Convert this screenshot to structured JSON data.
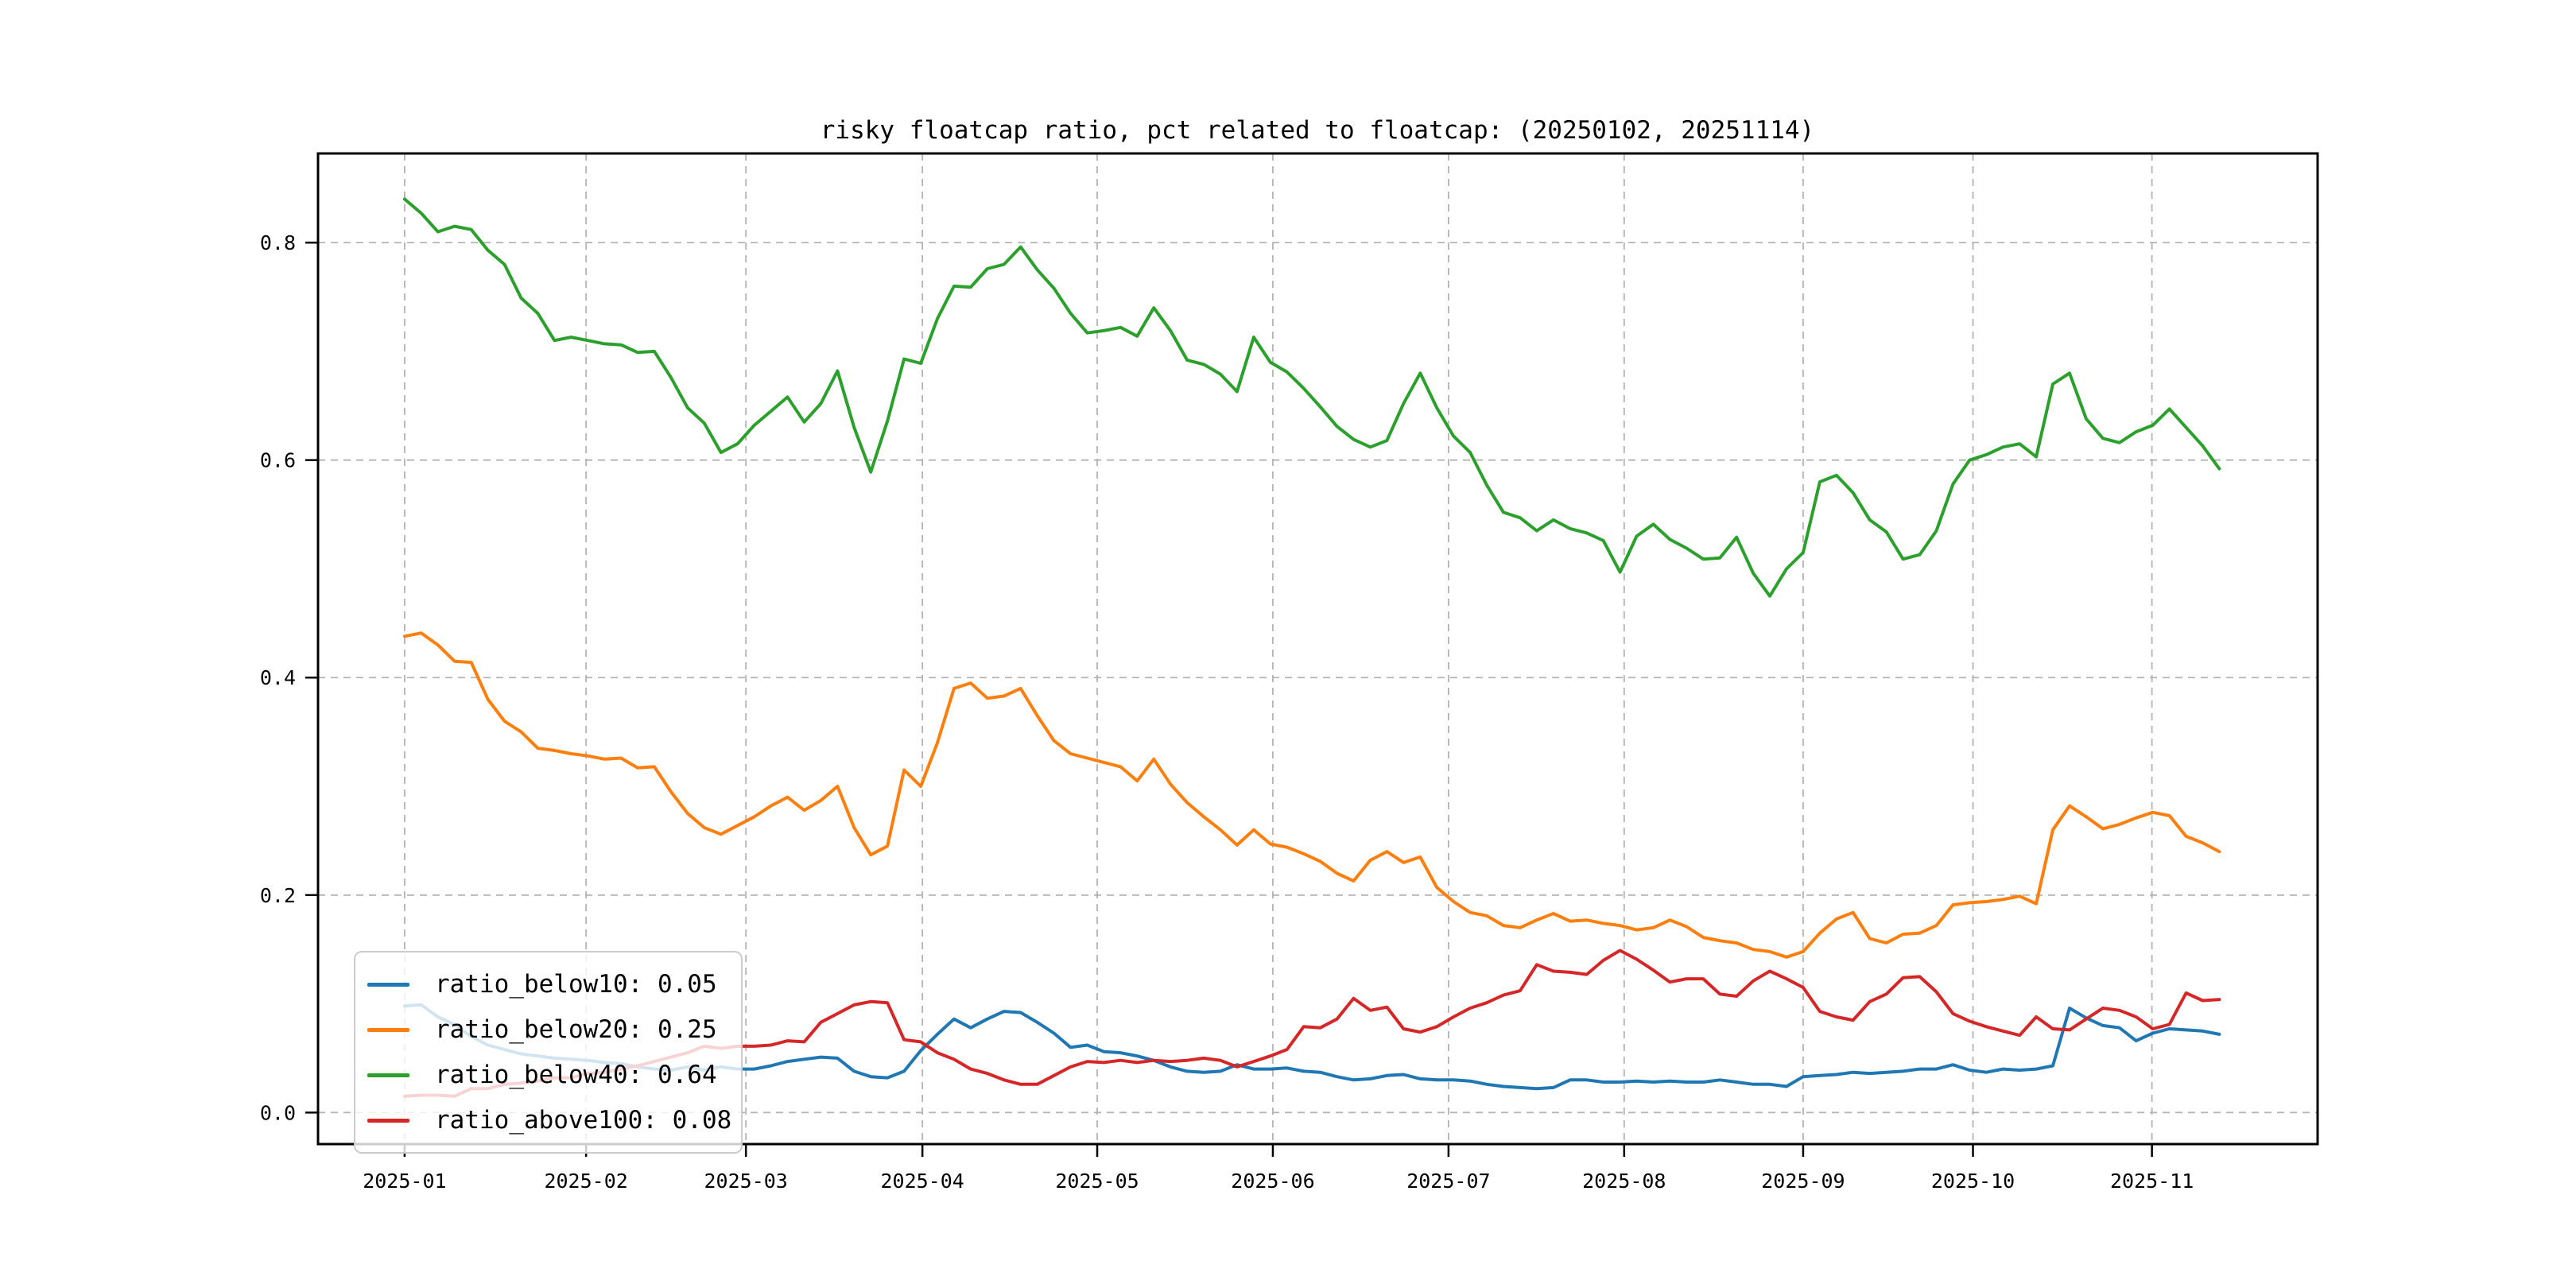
{
  "figure": {
    "title": "risky floatcap ratio, pct related to floatcap: (20250102, 20251114)",
    "background": "#ffffff"
  },
  "chart_data": {
    "type": "line",
    "title": "risky floatcap ratio, pct related to floatcap: (20250102, 20251114)",
    "xlabel": "",
    "ylabel": "",
    "grid": true,
    "grid_color": "#b3b3b3",
    "legend_position": "lower left",
    "x_unit": "trading-day index from 2025-01-02",
    "x_step_days": 2,
    "xlim_days": [
      -10.4,
      229.8
    ],
    "ylim": [
      -0.029,
      0.882
    ],
    "y_ticks": [
      0.0,
      0.2,
      0.4,
      0.6,
      0.8
    ],
    "y_tick_labels": [
      "0.0",
      "0.2",
      "0.4",
      "0.6",
      "0.8"
    ],
    "x_tick_days": [
      0,
      21.8,
      41.0,
      62.2,
      83.2,
      104.3,
      125.4,
      146.5,
      168.0,
      188.4,
      209.9
    ],
    "x_tick_labels": [
      "2025-01",
      "2025-02",
      "2025-03",
      "2025-04",
      "2025-05",
      "2025-06",
      "2025-07",
      "2025-08",
      "2025-09",
      "2025-10",
      "2025-11"
    ],
    "series": [
      {
        "name": "ratio_below10",
        "legend_label": "ratio_below10: 0.05",
        "color": "#1f77b4",
        "values": [
          0.098,
          0.099,
          0.088,
          0.081,
          0.07,
          0.062,
          0.058,
          0.054,
          0.052,
          0.05,
          0.049,
          0.048,
          0.046,
          0.045,
          0.042,
          0.04,
          0.039,
          0.042,
          0.039,
          0.042,
          0.04,
          0.04,
          0.043,
          0.047,
          0.049,
          0.051,
          0.05,
          0.038,
          0.033,
          0.032,
          0.038,
          0.057,
          0.072,
          0.086,
          0.078,
          0.086,
          0.093,
          0.092,
          0.083,
          0.073,
          0.06,
          0.062,
          0.056,
          0.055,
          0.052,
          0.048,
          0.042,
          0.038,
          0.037,
          0.038,
          0.044,
          0.04,
          0.04,
          0.041,
          0.038,
          0.037,
          0.033,
          0.03,
          0.031,
          0.034,
          0.035,
          0.031,
          0.03,
          0.03,
          0.029,
          0.026,
          0.024,
          0.023,
          0.022,
          0.023,
          0.03,
          0.03,
          0.028,
          0.028,
          0.029,
          0.028,
          0.029,
          0.028,
          0.028,
          0.03,
          0.028,
          0.026,
          0.026,
          0.024,
          0.033,
          0.034,
          0.035,
          0.037,
          0.036,
          0.037,
          0.038,
          0.04,
          0.04,
          0.044,
          0.039,
          0.037,
          0.04,
          0.039,
          0.04,
          0.043,
          0.096,
          0.087,
          0.08,
          0.078,
          0.066,
          0.073,
          0.077,
          0.076,
          0.075,
          0.072
        ]
      },
      {
        "name": "ratio_below20",
        "legend_label": "ratio_below20: 0.25",
        "color": "#ff7f0e",
        "values": [
          0.438,
          0.441,
          0.43,
          0.415,
          0.414,
          0.38,
          0.36,
          0.35,
          0.335,
          0.333,
          0.33,
          0.328,
          0.325,
          0.326,
          0.317,
          0.318,
          0.295,
          0.275,
          0.262,
          0.256,
          0.264,
          0.272,
          0.282,
          0.29,
          0.278,
          0.287,
          0.3,
          0.262,
          0.237,
          0.245,
          0.315,
          0.3,
          0.34,
          0.39,
          0.395,
          0.381,
          0.383,
          0.39,
          0.365,
          0.342,
          0.33,
          0.326,
          0.322,
          0.318,
          0.305,
          0.325,
          0.302,
          0.285,
          0.272,
          0.26,
          0.246,
          0.26,
          0.247,
          0.244,
          0.238,
          0.231,
          0.22,
          0.213,
          0.232,
          0.24,
          0.23,
          0.235,
          0.207,
          0.194,
          0.184,
          0.181,
          0.172,
          0.17,
          0.177,
          0.183,
          0.176,
          0.177,
          0.174,
          0.172,
          0.168,
          0.17,
          0.177,
          0.171,
          0.161,
          0.158,
          0.156,
          0.15,
          0.148,
          0.143,
          0.148,
          0.165,
          0.178,
          0.184,
          0.16,
          0.156,
          0.164,
          0.165,
          0.172,
          0.191,
          0.193,
          0.194,
          0.196,
          0.199,
          0.192,
          0.26,
          0.282,
          0.272,
          0.261,
          0.265,
          0.271,
          0.276,
          0.273,
          0.254,
          0.248,
          0.24
        ]
      },
      {
        "name": "ratio_below40",
        "legend_label": "ratio_below40: 0.64",
        "color": "#2ca02c",
        "values": [
          0.84,
          0.827,
          0.81,
          0.815,
          0.812,
          0.793,
          0.78,
          0.749,
          0.735,
          0.71,
          0.713,
          0.71,
          0.707,
          0.706,
          0.699,
          0.7,
          0.676,
          0.648,
          0.634,
          0.607,
          0.615,
          0.632,
          0.645,
          0.658,
          0.635,
          0.652,
          0.682,
          0.63,
          0.589,
          0.636,
          0.693,
          0.689,
          0.73,
          0.76,
          0.759,
          0.776,
          0.78,
          0.796,
          0.775,
          0.758,
          0.735,
          0.717,
          0.719,
          0.722,
          0.714,
          0.74,
          0.719,
          0.692,
          0.688,
          0.679,
          0.663,
          0.713,
          0.69,
          0.681,
          0.666,
          0.649,
          0.631,
          0.619,
          0.612,
          0.618,
          0.652,
          0.68,
          0.648,
          0.622,
          0.607,
          0.577,
          0.552,
          0.547,
          0.535,
          0.545,
          0.537,
          0.533,
          0.526,
          0.497,
          0.53,
          0.541,
          0.527,
          0.519,
          0.509,
          0.51,
          0.529,
          0.496,
          0.475,
          0.5,
          0.515,
          0.58,
          0.586,
          0.57,
          0.545,
          0.534,
          0.509,
          0.513,
          0.535,
          0.578,
          0.6,
          0.605,
          0.612,
          0.615,
          0.603,
          0.67,
          0.68,
          0.638,
          0.62,
          0.616,
          0.626,
          0.632,
          0.647,
          0.63,
          0.613,
          0.592
        ]
      },
      {
        "name": "ratio_above100",
        "legend_label": "ratio_above100: 0.08",
        "color": "#d62728",
        "values": [
          0.015,
          0.016,
          0.016,
          0.015,
          0.022,
          0.022,
          0.026,
          0.027,
          0.029,
          0.032,
          0.032,
          0.036,
          0.037,
          0.04,
          0.043,
          0.047,
          0.051,
          0.055,
          0.061,
          0.059,
          0.061,
          0.061,
          0.062,
          0.066,
          0.065,
          0.083,
          0.091,
          0.099,
          0.102,
          0.101,
          0.067,
          0.065,
          0.055,
          0.049,
          0.04,
          0.036,
          0.03,
          0.026,
          0.026,
          0.034,
          0.042,
          0.047,
          0.046,
          0.048,
          0.046,
          0.048,
          0.047,
          0.048,
          0.05,
          0.048,
          0.042,
          0.047,
          0.052,
          0.058,
          0.079,
          0.078,
          0.086,
          0.105,
          0.094,
          0.097,
          0.077,
          0.074,
          0.079,
          0.088,
          0.096,
          0.101,
          0.108,
          0.112,
          0.136,
          0.13,
          0.129,
          0.127,
          0.14,
          0.149,
          0.141,
          0.131,
          0.12,
          0.123,
          0.123,
          0.109,
          0.107,
          0.121,
          0.13,
          0.123,
          0.115,
          0.093,
          0.088,
          0.085,
          0.102,
          0.109,
          0.124,
          0.125,
          0.111,
          0.091,
          0.084,
          0.079,
          0.075,
          0.071,
          0.088,
          0.077,
          0.076,
          0.086,
          0.096,
          0.094,
          0.088,
          0.077,
          0.081,
          0.11,
          0.103,
          0.104
        ]
      }
    ]
  }
}
